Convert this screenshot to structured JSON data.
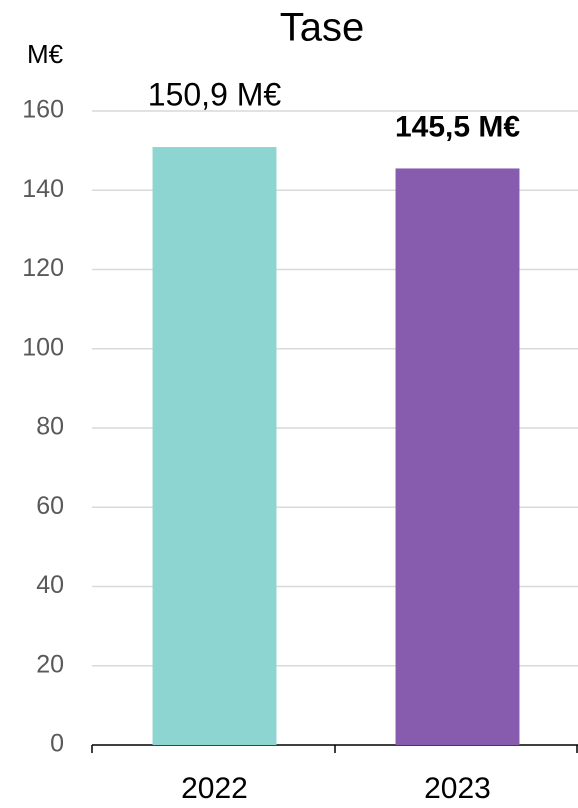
{
  "chart_data": {
    "type": "bar",
    "title": "Tase",
    "y_label": "M€",
    "categories": [
      "2022",
      "2023"
    ],
    "values": [
      150.9,
      145.5
    ],
    "value_labels": [
      "150,9 M€",
      "145,5 M€"
    ],
    "colors": [
      "#8dd5d1",
      "#875bad"
    ],
    "ylim": [
      0,
      160
    ],
    "yticks": [
      0,
      20,
      40,
      60,
      80,
      100,
      120,
      140,
      160
    ],
    "grid": true
  }
}
